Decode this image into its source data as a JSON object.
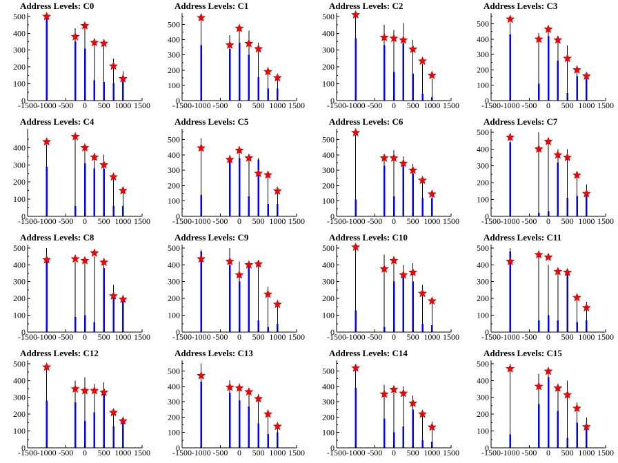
{
  "chart_data": [
    {
      "type": "bar",
      "title": "Address Levels: C0",
      "xlim": [
        -1500,
        1500
      ],
      "xticks": [
        -1500,
        -1000,
        -500,
        0,
        500,
        1000,
        1500
      ],
      "yticks": [
        0,
        100,
        200,
        300,
        400,
        500
      ],
      "ylim": [
        0,
        520
      ],
      "x": [
        -1000,
        -250,
        0,
        250,
        500,
        750,
        1000
      ],
      "black": [
        500,
        430,
        450,
        350,
        360,
        250,
        175
      ],
      "blue": [
        490,
        350,
        310,
        120,
        110,
        105,
        115
      ],
      "markers": [
        500,
        380,
        445,
        345,
        340,
        205,
        130
      ]
    },
    {
      "type": "bar",
      "title": "Address Levels: C1",
      "xlim": [
        -1500,
        1500
      ],
      "xticks": [
        -1500,
        -1000,
        -500,
        0,
        500,
        1000,
        1500
      ],
      "yticks": [
        0,
        100,
        200,
        300,
        400,
        500
      ],
      "ylim": [
        0,
        575
      ],
      "x": [
        -1000,
        -250,
        0,
        250,
        500,
        750,
        1000
      ],
      "black": [
        540,
        430,
        470,
        460,
        380,
        220,
        170
      ],
      "blue": [
        365,
        340,
        380,
        300,
        155,
        80,
        80
      ],
      "markers": [
        545,
        365,
        475,
        375,
        340,
        190,
        150
      ]
    },
    {
      "type": "bar",
      "title": "Address Levels: C2",
      "xlim": [
        -1500,
        1500
      ],
      "xticks": [
        -1500,
        -1000,
        -500,
        0,
        500,
        1000,
        1500
      ],
      "yticks": [
        0,
        100,
        200,
        300,
        400,
        500
      ],
      "ylim": [
        0,
        520
      ],
      "x": [
        -1000,
        -250,
        0,
        250,
        500,
        750,
        1000
      ],
      "black": [
        500,
        450,
        420,
        460,
        360,
        220,
        130
      ],
      "blue": [
        370,
        330,
        170,
        340,
        160,
        40,
        20
      ],
      "markers": [
        510,
        375,
        370,
        360,
        305,
        235,
        150
      ]
    },
    {
      "type": "bar",
      "title": "Address Levels: C3",
      "xlim": [
        -1500,
        1500
      ],
      "xticks": [
        -1500,
        -1000,
        -500,
        0,
        500,
        1000,
        1500
      ],
      "yticks": [
        0,
        100,
        200,
        300,
        400,
        500
      ],
      "ylim": [
        0,
        570
      ],
      "x": [
        -1000,
        -250,
        0,
        250,
        500,
        750,
        1000
      ],
      "black": [
        510,
        440,
        470,
        400,
        360,
        230,
        170
      ],
      "blue": [
        430,
        110,
        420,
        260,
        50,
        160,
        160
      ],
      "markers": [
        530,
        400,
        465,
        395,
        275,
        200,
        160
      ]
    },
    {
      "type": "bar",
      "title": "Address Levels: C4",
      "xlim": [
        -1500,
        1500
      ],
      "xticks": [
        -1500,
        -1000,
        -500,
        0,
        500,
        1000,
        1500
      ],
      "yticks": [
        0,
        100,
        200,
        300,
        400
      ],
      "ylim": [
        0,
        510
      ],
      "x": [
        -1000,
        -250,
        0,
        250,
        500,
        750,
        1000
      ],
      "black": [
        420,
        460,
        390,
        360,
        360,
        230,
        150
      ],
      "blue": [
        290,
        60,
        310,
        280,
        280,
        60,
        60
      ],
      "markers": [
        435,
        465,
        400,
        345,
        300,
        230,
        150
      ]
    },
    {
      "type": "bar",
      "title": "Address Levels: C5",
      "xlim": [
        -1500,
        1500
      ],
      "xticks": [
        -1500,
        -1000,
        -500,
        0,
        500,
        1000,
        1500
      ],
      "yticks": [
        0,
        100,
        200,
        300,
        400,
        500
      ],
      "ylim": [
        0,
        570
      ],
      "x": [
        -1000,
        -250,
        0,
        250,
        500,
        750,
        1000
      ],
      "black": [
        510,
        400,
        430,
        400,
        380,
        280,
        180
      ],
      "blue": [
        140,
        380,
        380,
        130,
        370,
        80,
        80
      ],
      "markers": [
        445,
        370,
        430,
        380,
        280,
        270,
        165
      ]
    },
    {
      "type": "bar",
      "title": "Address Levels: C6",
      "xlim": [
        -1500,
        1500
      ],
      "xticks": [
        -1500,
        -1000,
        -500,
        0,
        500,
        1000,
        1500
      ],
      "yticks": [
        0,
        100,
        200,
        300,
        400,
        500
      ],
      "ylim": [
        0,
        570
      ],
      "x": [
        -1000,
        -250,
        0,
        250,
        500,
        750,
        1000
      ],
      "black": [
        530,
        400,
        430,
        390,
        340,
        240,
        150
      ],
      "blue": [
        110,
        330,
        130,
        330,
        280,
        120,
        120
      ],
      "markers": [
        545,
        380,
        380,
        345,
        300,
        235,
        145
      ]
    },
    {
      "type": "bar",
      "title": "Address Levels: C7",
      "xlim": [
        -1500,
        1500
      ],
      "xticks": [
        -1500,
        -1000,
        -500,
        0,
        500,
        1000,
        1500
      ],
      "yticks": [
        0,
        100,
        200,
        300,
        400,
        500
      ],
      "ylim": [
        0,
        520
      ],
      "x": [
        -1000,
        -250,
        0,
        250,
        500,
        750,
        1000
      ],
      "black": [
        460,
        500,
        460,
        400,
        400,
        260,
        190
      ],
      "blue": [
        440,
        20,
        30,
        320,
        110,
        120,
        130
      ],
      "markers": [
        470,
        400,
        445,
        365,
        350,
        245,
        135
      ]
    },
    {
      "type": "bar",
      "title": "Address Levels: C8",
      "xlim": [
        -1500,
        1500
      ],
      "xticks": [
        -1500,
        -1000,
        -500,
        0,
        500,
        1000,
        1500
      ],
      "yticks": [
        0,
        100,
        200,
        300,
        400,
        500
      ],
      "ylim": [
        0,
        520
      ],
      "x": [
        -1000,
        -250,
        0,
        250,
        500,
        750,
        1000
      ],
      "black": [
        500,
        420,
        430,
        450,
        420,
        280,
        200
      ],
      "blue": [
        430,
        90,
        100,
        60,
        380,
        200,
        190
      ],
      "markers": [
        430,
        435,
        425,
        470,
        415,
        215,
        195
      ]
    },
    {
      "type": "bar",
      "title": "Address Levels: C9",
      "xlim": [
        -1500,
        1500
      ],
      "xticks": [
        -1500,
        -1000,
        -500,
        0,
        500,
        1000,
        1500
      ],
      "yticks": [
        0,
        100,
        200,
        300,
        400,
        500
      ],
      "ylim": [
        0,
        520
      ],
      "x": [
        -1000,
        -250,
        0,
        250,
        500,
        750,
        1000
      ],
      "black": [
        490,
        500,
        420,
        420,
        410,
        270,
        190
      ],
      "blue": [
        480,
        400,
        300,
        400,
        70,
        30,
        50
      ],
      "markers": [
        435,
        420,
        340,
        400,
        405,
        225,
        165
      ]
    },
    {
      "type": "bar",
      "title": "Address Levels: C10",
      "xlim": [
        -1500,
        1500
      ],
      "xticks": [
        -1500,
        -1000,
        -500,
        0,
        500,
        1000,
        1500
      ],
      "yticks": [
        0,
        100,
        200,
        300,
        400,
        500
      ],
      "ylim": [
        0,
        520
      ],
      "x": [
        -1000,
        -250,
        0,
        250,
        500,
        750,
        1000
      ],
      "black": [
        500,
        460,
        450,
        400,
        410,
        280,
        200
      ],
      "blue": [
        130,
        30,
        300,
        330,
        300,
        50,
        40
      ],
      "markers": [
        505,
        375,
        425,
        340,
        355,
        230,
        185
      ]
    },
    {
      "type": "bar",
      "title": "Address Levels: C11",
      "xlim": [
        -1500,
        1500
      ],
      "xticks": [
        -1500,
        -1000,
        -500,
        0,
        500,
        1000,
        1500
      ],
      "yticks": [
        0,
        100,
        200,
        300,
        400,
        500
      ],
      "ylim": [
        0,
        520
      ],
      "x": [
        -1000,
        -250,
        0,
        250,
        500,
        750,
        1000
      ],
      "black": [
        500,
        470,
        400,
        370,
        370,
        230,
        180
      ],
      "blue": [
        480,
        70,
        100,
        70,
        370,
        60,
        70
      ],
      "markers": [
        420,
        460,
        445,
        360,
        355,
        205,
        145
      ]
    },
    {
      "type": "bar",
      "title": "Address Levels: C12",
      "xlim": [
        -1500,
        1500
      ],
      "xticks": [
        -1500,
        -1000,
        -500,
        0,
        500,
        1000,
        1500
      ],
      "yticks": [
        0,
        100,
        200,
        300,
        400,
        500
      ],
      "ylim": [
        0,
        520
      ],
      "x": [
        -1000,
        -250,
        0,
        250,
        500,
        750,
        1000
      ],
      "black": [
        480,
        400,
        420,
        380,
        390,
        230,
        170
      ],
      "blue": [
        280,
        270,
        160,
        210,
        350,
        130,
        150
      ],
      "markers": [
        480,
        350,
        340,
        340,
        330,
        210,
        160
      ]
    },
    {
      "type": "bar",
      "title": "Address Levels: C13",
      "xlim": [
        -1500,
        1500
      ],
      "xticks": [
        -1500,
        -1000,
        -500,
        0,
        500,
        1000,
        1500
      ],
      "yticks": [
        0,
        100,
        200,
        300,
        400,
        500
      ],
      "ylim": [
        0,
        570
      ],
      "x": [
        -1000,
        -250,
        0,
        250,
        500,
        750,
        1000
      ],
      "black": [
        550,
        440,
        420,
        380,
        350,
        250,
        150
      ],
      "blue": [
        430,
        360,
        310,
        270,
        160,
        90,
        100
      ],
      "markers": [
        470,
        395,
        390,
        365,
        320,
        220,
        140
      ]
    },
    {
      "type": "bar",
      "title": "Address Levels: C14",
      "xlim": [
        -1500,
        1500
      ],
      "xticks": [
        -1500,
        -1000,
        -500,
        0,
        500,
        1000,
        1500
      ],
      "yticks": [
        0,
        100,
        200,
        300,
        400,
        500
      ],
      "ylim": [
        0,
        570
      ],
      "x": [
        -1000,
        -250,
        0,
        250,
        500,
        750,
        1000
      ],
      "black": [
        530,
        410,
        400,
        400,
        340,
        240,
        170
      ],
      "blue": [
        390,
        190,
        100,
        140,
        250,
        50,
        40
      ],
      "markers": [
        520,
        350,
        380,
        355,
        290,
        220,
        135
      ]
    },
    {
      "type": "bar",
      "title": "Address Levels: C15",
      "xlim": [
        -1500,
        1500
      ],
      "xticks": [
        -1500,
        -1000,
        -500,
        0,
        500,
        1000,
        1500
      ],
      "yticks": [
        0,
        100,
        200,
        300,
        400,
        500
      ],
      "ylim": [
        0,
        520
      ],
      "x": [
        -1000,
        -250,
        0,
        250,
        500,
        750,
        1000
      ],
      "black": [
        500,
        440,
        470,
        380,
        400,
        270,
        180
      ],
      "blue": [
        80,
        260,
        420,
        220,
        60,
        150,
        130
      ],
      "markers": [
        470,
        365,
        455,
        355,
        315,
        235,
        125
      ]
    }
  ]
}
